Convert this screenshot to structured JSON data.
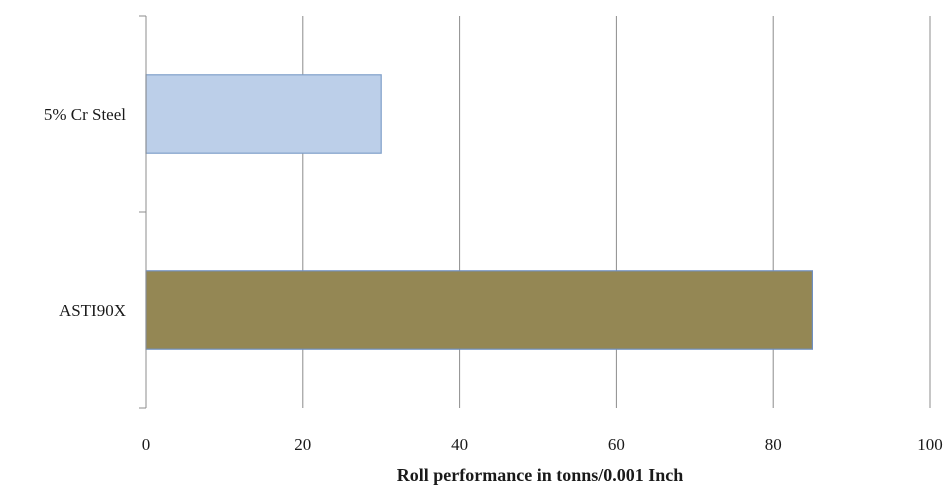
{
  "chart_data": {
    "type": "bar",
    "orientation": "horizontal",
    "categories": [
      "5% Cr Steel",
      "ASTI90X"
    ],
    "values": [
      30,
      85
    ],
    "bar_colors": [
      "#bccfe9",
      "#948754"
    ],
    "bar_edge_colors": [
      "#7f9fc9",
      "#6f8fc0"
    ],
    "xlabel": "Roll performance in tonns/0.001 Inch",
    "ylabel": "",
    "xlim": [
      0,
      100
    ],
    "x_ticks": [
      "0",
      "20",
      "40",
      "60",
      "80",
      "100"
    ],
    "grid": true,
    "gridline_color": "#8c8c8c",
    "legend": "none"
  }
}
